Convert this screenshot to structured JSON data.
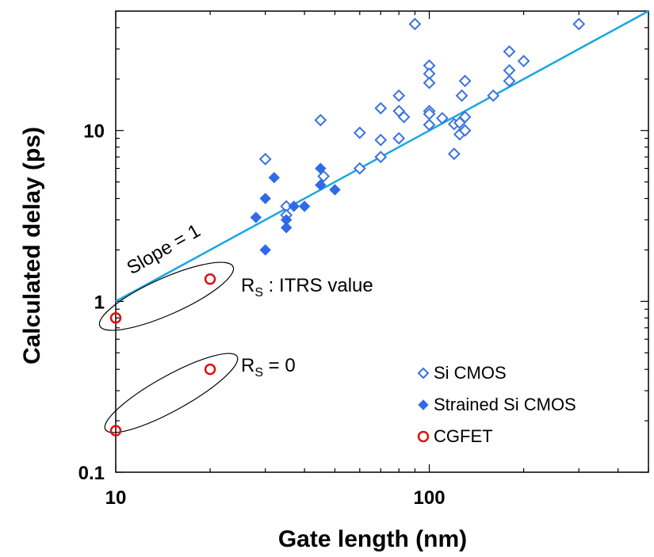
{
  "chart_data": {
    "type": "scatter",
    "xscale": "log",
    "yscale": "log",
    "xlim": [
      10,
      500
    ],
    "ylim": [
      0.1,
      50
    ],
    "xlabel": "Gate length (nm)",
    "ylabel": "Calculated delay (ps)",
    "x_ticks": [
      "10",
      "100"
    ],
    "y_ticks": [
      "0.1",
      "1",
      "10"
    ],
    "grid": false,
    "legend_position": "bottom-right",
    "colors": {
      "si_cmos": "#3a72e0",
      "strained": "#2f6be8",
      "cgfet": "#e01010",
      "fit_line": "#1aa6e0",
      "ellipse": "#000000"
    },
    "series": [
      {
        "name": "Si CMOS",
        "marker": "open-diamond",
        "points": [
          [
            30,
            6.8
          ],
          [
            35,
            3.6
          ],
          [
            35,
            3.2
          ],
          [
            45,
            11.5
          ],
          [
            46,
            5.4
          ],
          [
            60,
            9.7
          ],
          [
            60,
            6.0
          ],
          [
            70,
            13.5
          ],
          [
            70,
            8.8
          ],
          [
            70,
            7.0
          ],
          [
            80,
            16
          ],
          [
            80,
            13
          ],
          [
            80,
            9.0
          ],
          [
            83,
            12
          ],
          [
            90,
            42
          ],
          [
            100,
            24
          ],
          [
            100,
            21.5
          ],
          [
            100,
            19
          ],
          [
            100,
            13
          ],
          [
            100,
            12.5
          ],
          [
            100,
            10.8
          ],
          [
            110,
            11.8
          ],
          [
            120,
            7.3
          ],
          [
            120,
            10.9
          ],
          [
            125,
            11.1
          ],
          [
            125,
            9.5
          ],
          [
            127,
            16
          ],
          [
            130,
            19.5
          ],
          [
            130,
            12
          ],
          [
            130,
            10
          ],
          [
            160,
            16
          ],
          [
            180,
            29
          ],
          [
            180,
            22.5
          ],
          [
            180,
            19.5
          ],
          [
            200,
            25.5
          ],
          [
            300,
            42
          ]
        ]
      },
      {
        "name": "Strained Si CMOS",
        "marker": "filled-diamond",
        "points": [
          [
            28,
            3.1
          ],
          [
            30,
            4.0
          ],
          [
            30,
            2.0
          ],
          [
            32,
            5.3
          ],
          [
            35,
            3.0
          ],
          [
            35,
            2.7
          ],
          [
            37,
            3.6
          ],
          [
            40,
            3.6
          ],
          [
            45,
            6.0
          ],
          [
            45,
            4.8
          ],
          [
            50,
            4.5
          ]
        ]
      },
      {
        "name": "CGFET",
        "marker": "open-circle",
        "points": [
          [
            10,
            0.8
          ],
          [
            20,
            1.35
          ],
          [
            10,
            0.175
          ],
          [
            20,
            0.4
          ]
        ]
      }
    ],
    "fit_line": {
      "from": [
        10,
        1.0
      ],
      "to": [
        500,
        50
      ]
    },
    "annotations": [
      {
        "text": "Slope = 1"
      },
      {
        "text_main": "R",
        "text_sub": "S",
        "text_tail": " : ITRS value"
      },
      {
        "text_main": "R",
        "text_sub": "S",
        "text_tail": " = 0"
      }
    ]
  }
}
